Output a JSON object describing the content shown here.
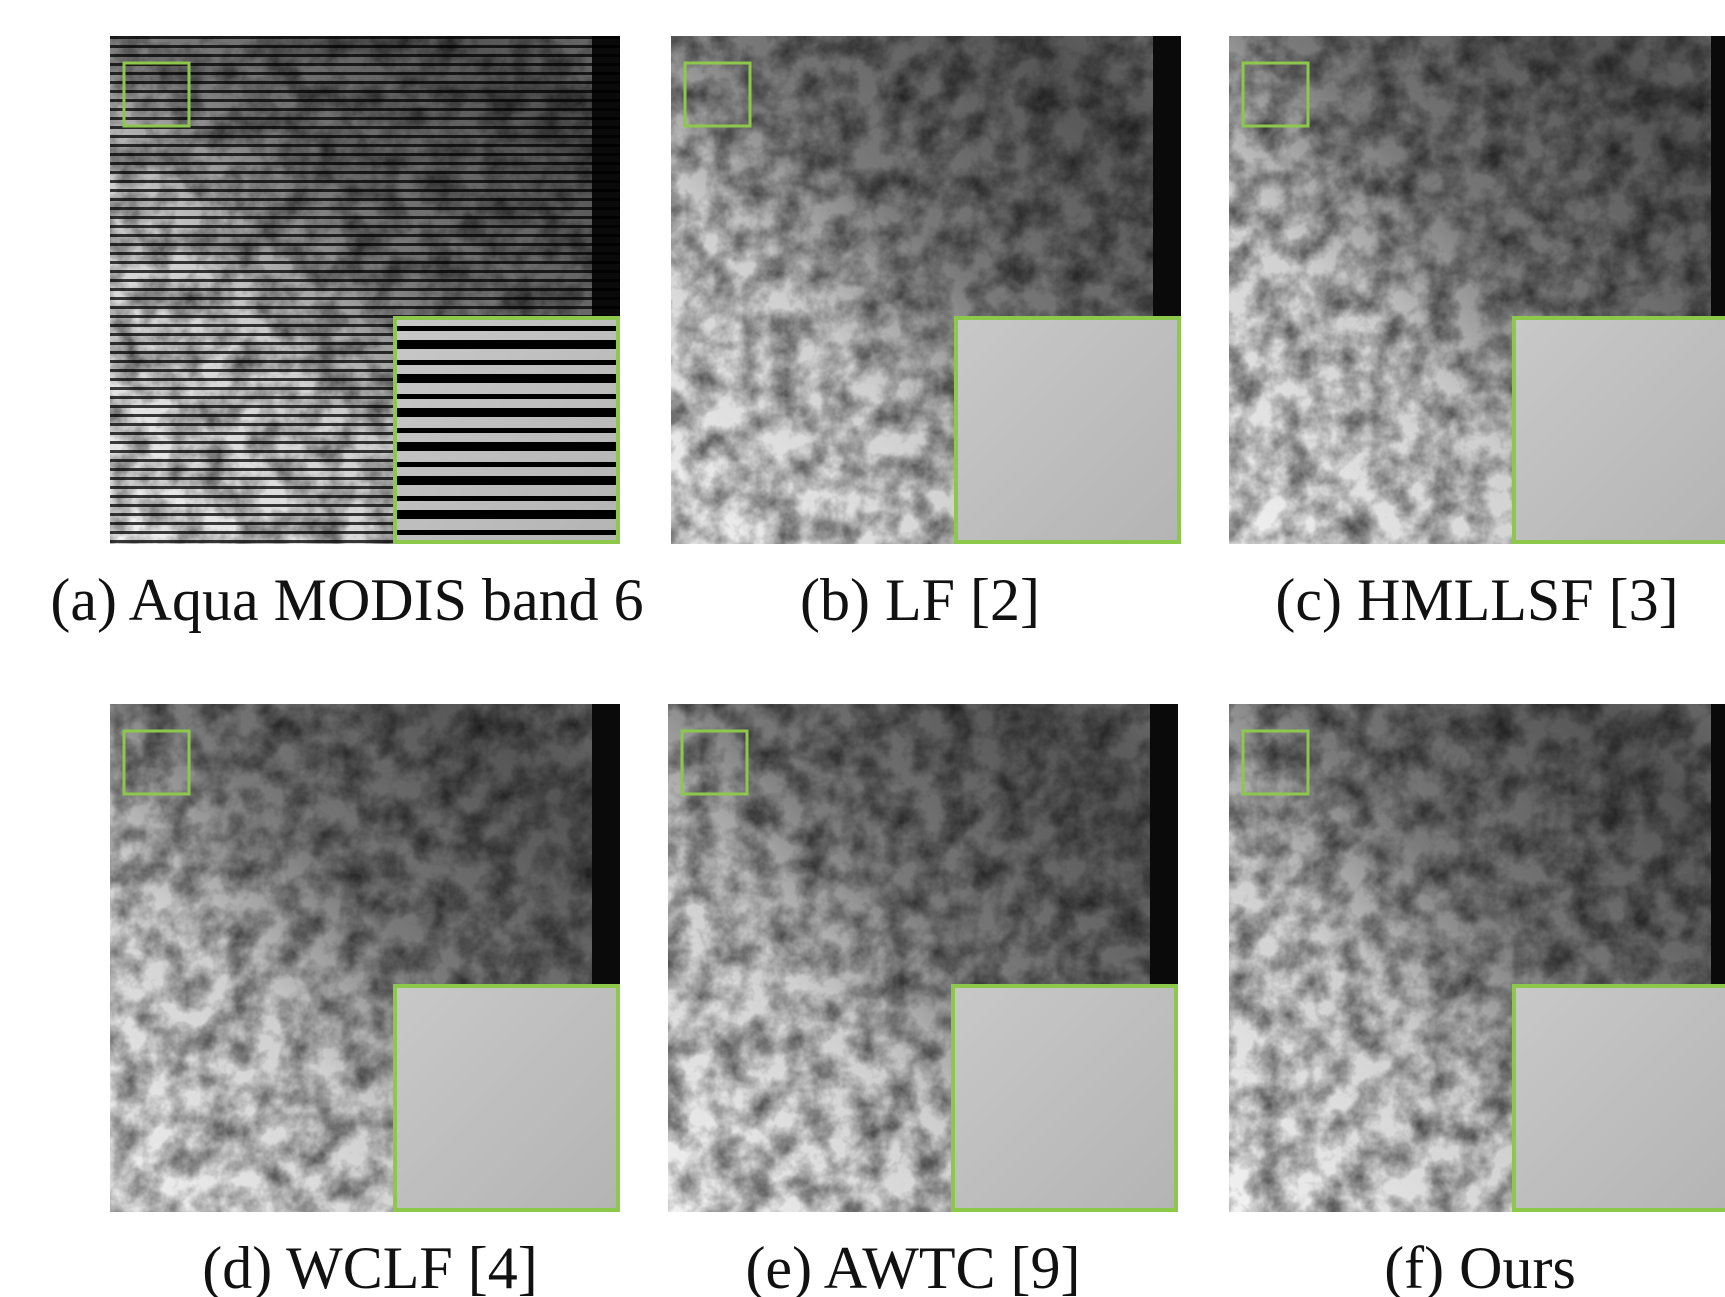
{
  "figure": {
    "panels": [
      {
        "caption": "(a) Aqua MODIS band 6"
      },
      {
        "caption": "(b) LF [2]"
      },
      {
        "caption": "(c) HMLLSF [3]"
      },
      {
        "caption": "(d) WCLF [4]"
      },
      {
        "caption": "(e) AWTC [9]"
      },
      {
        "caption": "(f) Ours"
      }
    ]
  }
}
